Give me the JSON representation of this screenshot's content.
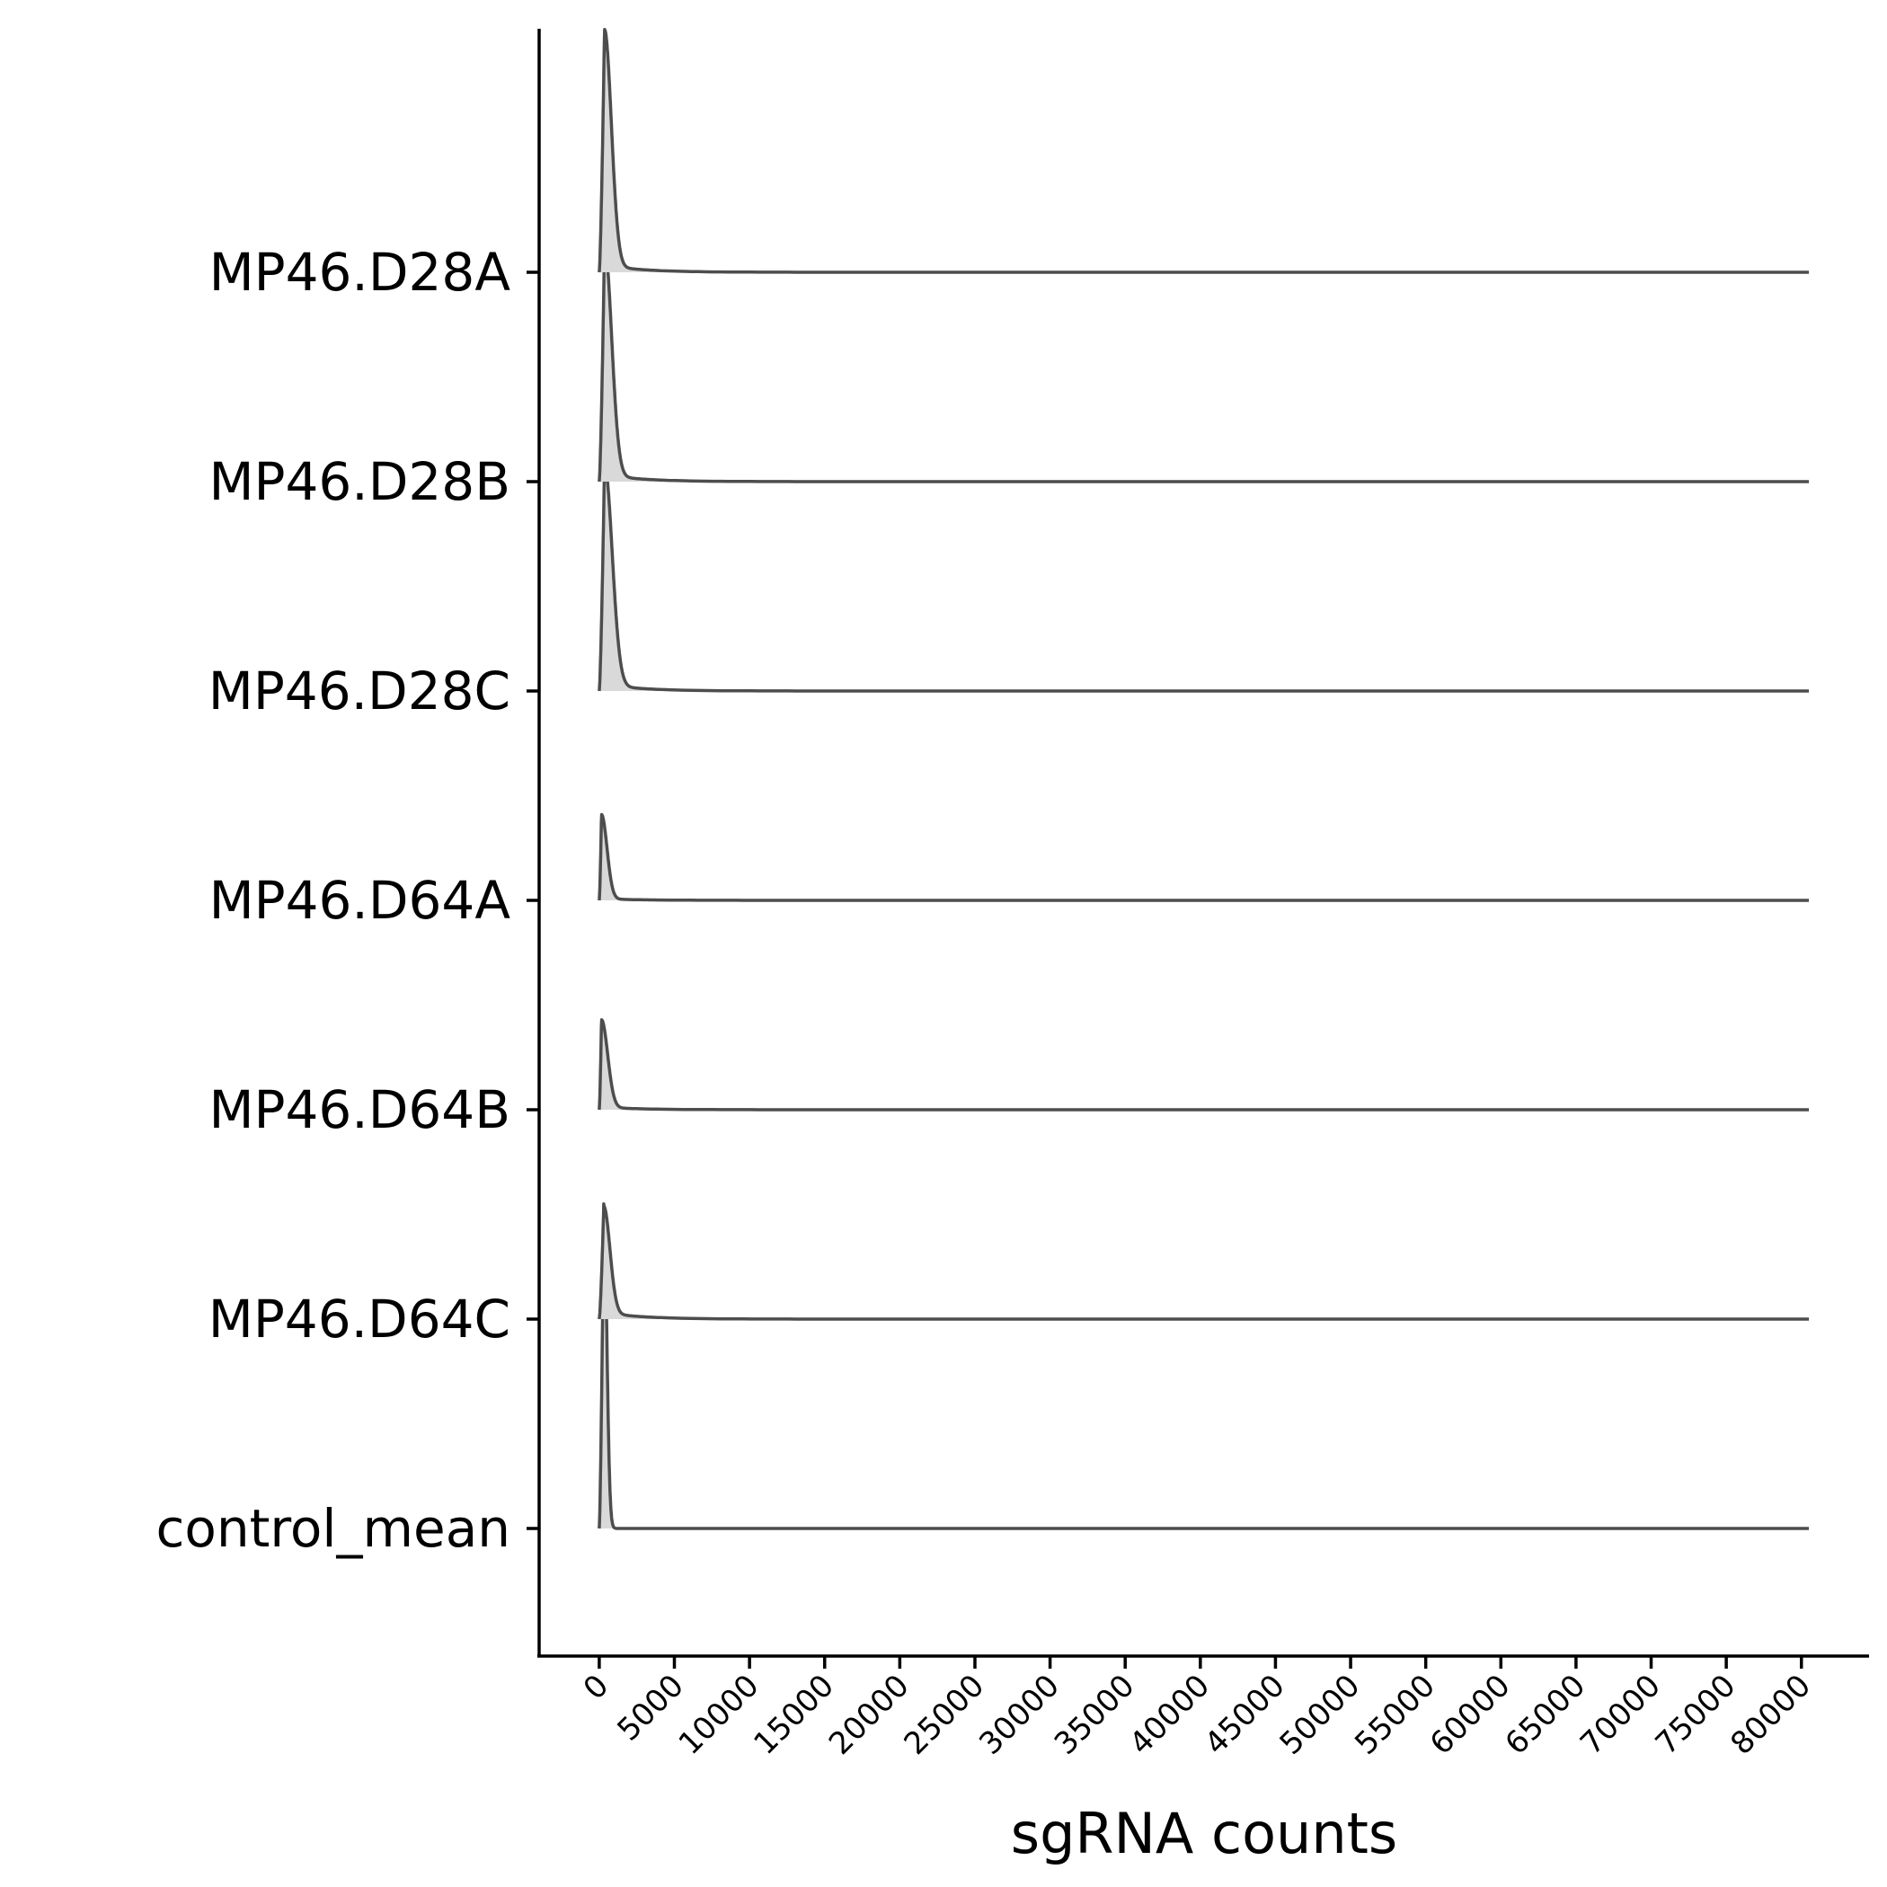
{
  "chart_data": {
    "type": "ridgeline",
    "xlabel": "sgRNA counts",
    "ylabel": "",
    "xlim": [
      -4000,
      84500
    ],
    "xticks": [
      0,
      5000,
      10000,
      15000,
      20000,
      25000,
      30000,
      35000,
      40000,
      45000,
      50000,
      55000,
      60000,
      65000,
      70000,
      75000,
      80000
    ],
    "xtick_labels": [
      "0",
      "5000",
      "10000",
      "15000",
      "20000",
      "25000",
      "30000",
      "35000",
      "40000",
      "45000",
      "50000",
      "55000",
      "60000",
      "65000",
      "70000",
      "75000",
      "80000"
    ],
    "fill_color": "#d9d9d9",
    "line_color": "#4d4d4d",
    "series": [
      {
        "name": "MP46.D28A",
        "peak_x": 350,
        "peak_height": 1.16,
        "min_x": 0,
        "max_x": 80500,
        "spread": 500,
        "tail": 0.03
      },
      {
        "name": "MP46.D28B",
        "peak_x": 350,
        "peak_height": 1.13,
        "min_x": 0,
        "max_x": 80500,
        "spread": 520,
        "tail": 0.03
      },
      {
        "name": "MP46.D28C",
        "peak_x": 350,
        "peak_height": 1.08,
        "min_x": 0,
        "max_x": 80500,
        "spread": 560,
        "tail": 0.03
      },
      {
        "name": "MP46.D64A",
        "peak_x": 150,
        "peak_height": 0.41,
        "min_x": 0,
        "max_x": 80500,
        "spread": 400,
        "tail": 0.02
      },
      {
        "name": "MP46.D64B",
        "peak_x": 150,
        "peak_height": 0.43,
        "min_x": 0,
        "max_x": 80500,
        "spread": 450,
        "tail": 0.03
      },
      {
        "name": "MP46.D64C",
        "peak_x": 300,
        "peak_height": 0.54,
        "min_x": 0,
        "max_x": 80500,
        "spread": 450,
        "tail": 0.06
      },
      {
        "name": "control_mean",
        "peak_x": 300,
        "peak_height": 1.55,
        "min_x": 0,
        "max_x": 80500,
        "spread": 220,
        "tail": 0.0
      }
    ]
  }
}
